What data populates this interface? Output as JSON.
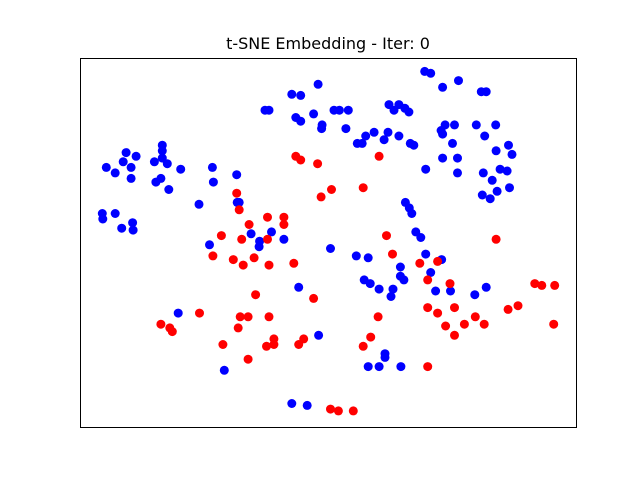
{
  "chart_data": {
    "type": "scatter",
    "title": "t-SNE Embedding - Iter: 0",
    "xlabel": "",
    "ylabel": "",
    "ticks_visible": false,
    "grid": false,
    "xlim": [
      0,
      100
    ],
    "ylim": [
      0,
      100
    ],
    "series": [
      {
        "color": "#0000ff",
        "points": [
          [
            69.4,
            96.5
          ],
          [
            70.6,
            96.0
          ],
          [
            76.2,
            94.0
          ],
          [
            47.9,
            93.0
          ],
          [
            73.0,
            92.2
          ],
          [
            80.8,
            91.0
          ],
          [
            81.8,
            91.0
          ],
          [
            42.6,
            90.3
          ],
          [
            44.4,
            90.0
          ],
          [
            37.2,
            86.0
          ],
          [
            38.0,
            86.0
          ],
          [
            51.1,
            86.0
          ],
          [
            52.2,
            86.0
          ],
          [
            62.2,
            87.5
          ],
          [
            64.2,
            87.5
          ],
          [
            65.4,
            86.5
          ],
          [
            66.2,
            85.5
          ],
          [
            47.0,
            85.0
          ],
          [
            54.0,
            86.0
          ],
          [
            63.2,
            86.0
          ],
          [
            43.4,
            84.0
          ],
          [
            44.4,
            83.0
          ],
          [
            48.7,
            82.0
          ],
          [
            48.6,
            81.0
          ],
          [
            53.5,
            81.0
          ],
          [
            59.2,
            80.0
          ],
          [
            73.5,
            82.0
          ],
          [
            72.7,
            80.5
          ],
          [
            75.4,
            82.0
          ],
          [
            79.8,
            82.0
          ],
          [
            83.7,
            82.0
          ],
          [
            81.5,
            79.0
          ],
          [
            57.5,
            79.0
          ],
          [
            62.0,
            80.0
          ],
          [
            61.2,
            78.0
          ],
          [
            64.2,
            79.0
          ],
          [
            66.5,
            77.0
          ],
          [
            67.2,
            76.5
          ],
          [
            73.0,
            79.5
          ],
          [
            56.8,
            77.0
          ],
          [
            55.8,
            77.0
          ],
          [
            75.0,
            77.0
          ],
          [
            86.3,
            76.5
          ],
          [
            87.0,
            74.0
          ],
          [
            83.8,
            75.0
          ],
          [
            73.0,
            73.0
          ],
          [
            76.0,
            73.0
          ],
          [
            69.6,
            70.0
          ],
          [
            76.0,
            69.0
          ],
          [
            81.2,
            69.0
          ],
          [
            84.6,
            70.0
          ],
          [
            86.0,
            69.5
          ],
          [
            83.0,
            67.0
          ],
          [
            81.0,
            63.0
          ],
          [
            84.0,
            64.0
          ],
          [
            82.6,
            62.0
          ],
          [
            86.5,
            65.0
          ],
          [
            16.5,
            76.5
          ],
          [
            16.5,
            75.0
          ],
          [
            9.2,
            74.5
          ],
          [
            11.2,
            73.5
          ],
          [
            8.6,
            72.0
          ],
          [
            16.5,
            73.0
          ],
          [
            14.9,
            72.0
          ],
          [
            17.5,
            71.5
          ],
          [
            5.2,
            70.5
          ],
          [
            10.2,
            70.5
          ],
          [
            20.2,
            70.0
          ],
          [
            26.6,
            70.5
          ],
          [
            31.5,
            68.5
          ],
          [
            7.0,
            69.0
          ],
          [
            10.2,
            67.5
          ],
          [
            16.2,
            67.5
          ],
          [
            26.8,
            66.5
          ],
          [
            17.8,
            64.5
          ],
          [
            15.2,
            66.5
          ],
          [
            31.6,
            61.0
          ],
          [
            32.0,
            61.0
          ],
          [
            23.9,
            60.5
          ],
          [
            4.4,
            58.0
          ],
          [
            4.5,
            56.5
          ],
          [
            7.0,
            58.0
          ],
          [
            10.5,
            55.5
          ],
          [
            8.3,
            54.0
          ],
          [
            10.6,
            53.5
          ],
          [
            65.5,
            61.0
          ],
          [
            66.3,
            59.5
          ],
          [
            66.8,
            58.0
          ],
          [
            67.6,
            53.0
          ],
          [
            68.6,
            51.5
          ],
          [
            38.5,
            53.0
          ],
          [
            36.1,
            50.5
          ],
          [
            34.4,
            52.5
          ],
          [
            41.0,
            51.0
          ],
          [
            26.0,
            49.5
          ],
          [
            36.0,
            49.0
          ],
          [
            50.4,
            48.5
          ],
          [
            55.6,
            46.5
          ],
          [
            58.0,
            46.0
          ],
          [
            64.5,
            43.5
          ],
          [
            69.6,
            47.0
          ],
          [
            72.8,
            45.5
          ],
          [
            64.5,
            41.0
          ],
          [
            65.2,
            40.0
          ],
          [
            70.6,
            42.0
          ],
          [
            57.2,
            40.0
          ],
          [
            58.4,
            39.0
          ],
          [
            60.2,
            37.5
          ],
          [
            63.0,
            37.5
          ],
          [
            71.6,
            37.0
          ],
          [
            74.6,
            37.0
          ],
          [
            79.5,
            36.0
          ],
          [
            81.8,
            38.0
          ],
          [
            44.0,
            38.0
          ],
          [
            62.6,
            35.5
          ],
          [
            19.7,
            31.0
          ],
          [
            48.0,
            25.0
          ],
          [
            61.4,
            20.0
          ],
          [
            61.4,
            19.0
          ],
          [
            64.6,
            16.5
          ],
          [
            60.2,
            16.5
          ],
          [
            58.0,
            16.5
          ],
          [
            29.0,
            15.5
          ],
          [
            42.6,
            6.5
          ],
          [
            45.7,
            6.0
          ]
        ]
      },
      {
        "color": "#ff0000",
        "points": [
          [
            60.2,
            73.5
          ],
          [
            43.4,
            73.5
          ],
          [
            44.4,
            72.5
          ],
          [
            47.8,
            71.5
          ],
          [
            57.0,
            65.0
          ],
          [
            50.6,
            64.5
          ],
          [
            48.5,
            62.5
          ],
          [
            31.5,
            63.5
          ],
          [
            32.0,
            59.0
          ],
          [
            37.7,
            57.0
          ],
          [
            41.0,
            57.0
          ],
          [
            41.0,
            55.0
          ],
          [
            34.0,
            55.0
          ],
          [
            28.4,
            52.0
          ],
          [
            32.5,
            51.0
          ],
          [
            37.7,
            51.0
          ],
          [
            61.7,
            52.0
          ],
          [
            83.8,
            51.0
          ],
          [
            26.7,
            46.5
          ],
          [
            30.8,
            45.5
          ],
          [
            32.8,
            44.0
          ],
          [
            35.0,
            46.0
          ],
          [
            38.0,
            44.0
          ],
          [
            43.0,
            44.5
          ],
          [
            62.9,
            47.0
          ],
          [
            68.4,
            44.5
          ],
          [
            72.0,
            45.0
          ],
          [
            70.0,
            40.0
          ],
          [
            74.5,
            39.0
          ],
          [
            91.6,
            39.0
          ],
          [
            93.0,
            38.5
          ],
          [
            95.6,
            38.5
          ],
          [
            35.3,
            36.0
          ],
          [
            47.0,
            35.0
          ],
          [
            70.0,
            32.5
          ],
          [
            75.4,
            32.5
          ],
          [
            88.2,
            33.0
          ],
          [
            86.2,
            32.0
          ],
          [
            72.0,
            31.0
          ],
          [
            60.0,
            30.0
          ],
          [
            79.6,
            30.0
          ],
          [
            16.2,
            28.0
          ],
          [
            18.0,
            27.0
          ],
          [
            18.5,
            26.0
          ],
          [
            24.0,
            31.0
          ],
          [
            32.2,
            30.0
          ],
          [
            33.8,
            30.0
          ],
          [
            38.0,
            30.0
          ],
          [
            31.8,
            27.0
          ],
          [
            73.6,
            27.5
          ],
          [
            75.4,
            25.0
          ],
          [
            77.4,
            28.0
          ],
          [
            81.4,
            28.0
          ],
          [
            95.4,
            28.0
          ],
          [
            58.5,
            24.5
          ],
          [
            39.0,
            24.0
          ],
          [
            39.0,
            22.5
          ],
          [
            45.0,
            24.0
          ],
          [
            44.0,
            22.5
          ],
          [
            57.0,
            22.0
          ],
          [
            28.7,
            22.5
          ],
          [
            37.5,
            22.0
          ],
          [
            33.8,
            18.5
          ],
          [
            70.0,
            16.5
          ],
          [
            50.4,
            5.0
          ],
          [
            52.0,
            4.5
          ],
          [
            55.0,
            4.5
          ]
        ]
      }
    ]
  }
}
